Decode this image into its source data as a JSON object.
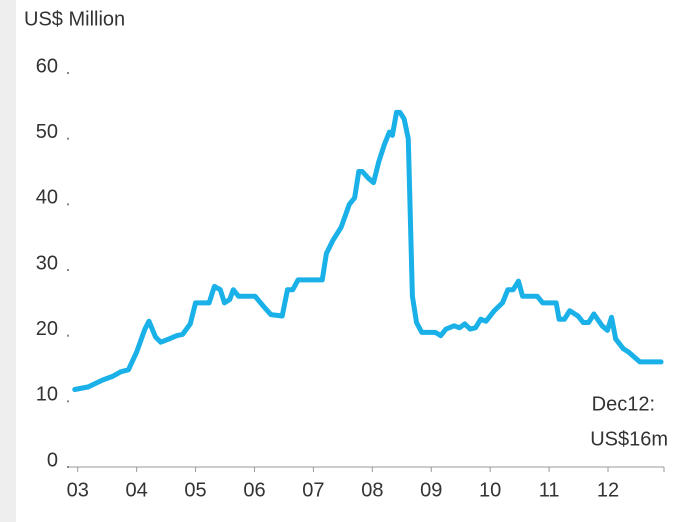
{
  "chart_data": {
    "type": "line",
    "y_label": "US$ Million",
    "annotation": [
      "Dec12:",
      "US$16m"
    ],
    "x": [
      2.95,
      3.18,
      3.41,
      3.59,
      3.73,
      3.86,
      4.0,
      4.14,
      4.21,
      4.32,
      4.41,
      4.55,
      4.68,
      4.78,
      4.91,
      5.0,
      5.23,
      5.32,
      5.42,
      5.49,
      5.58,
      5.64,
      5.73,
      6.01,
      6.15,
      6.28,
      6.47,
      6.56,
      6.65,
      6.74,
      7.15,
      7.22,
      7.33,
      7.47,
      7.61,
      7.7,
      7.77,
      7.83,
      7.93,
      8.02,
      8.11,
      8.2,
      8.29,
      8.34,
      8.41,
      8.47,
      8.54,
      8.61,
      8.68,
      8.75,
      8.84,
      9.07,
      9.16,
      9.25,
      9.39,
      9.48,
      9.57,
      9.66,
      9.75,
      9.84,
      9.93,
      10.07,
      10.21,
      10.3,
      10.39,
      10.48,
      10.55,
      10.71,
      10.8,
      10.89,
      11.12,
      11.17,
      11.26,
      11.35,
      11.49,
      11.58,
      11.67,
      11.76,
      11.9,
      11.99,
      12.06,
      12.13,
      12.26,
      12.35,
      12.54,
      12.9
    ],
    "series": [
      {
        "color": "#1ab0e8",
        "values": [
          11.8,
          12.2,
          13.2,
          13.8,
          14.5,
          14.8,
          17.5,
          21,
          22.2,
          19.8,
          19,
          19.5,
          20,
          20.2,
          21.8,
          25,
          25,
          27.5,
          27,
          25,
          25.5,
          27,
          26,
          26,
          24.5,
          23.2,
          23,
          27,
          27,
          28.5,
          28.5,
          32.5,
          34.5,
          36.5,
          40,
          41,
          45,
          45,
          44,
          43.3,
          46.5,
          49,
          51,
          50.5,
          54,
          54,
          53,
          50,
          26,
          22,
          20.5,
          20.5,
          20,
          21,
          21.5,
          21.2,
          21.8,
          21,
          21.2,
          22.5,
          22.2,
          23.8,
          25,
          27,
          27,
          28.3,
          26,
          26,
          26,
          25,
          25,
          22.5,
          22.5,
          23.8,
          23,
          22,
          22,
          23.3,
          21.5,
          20.8,
          22.8,
          19.5,
          18,
          17.5,
          16,
          16
        ]
      }
    ],
    "xlim": [
      2.92,
      12.95
    ],
    "xticks": [
      {
        "value": 3,
        "label": "03"
      },
      {
        "value": 4,
        "label": "04"
      },
      {
        "value": 5,
        "label": "05"
      },
      {
        "value": 6,
        "label": "06"
      },
      {
        "value": 7,
        "label": "07"
      },
      {
        "value": 8,
        "label": "08"
      },
      {
        "value": 9,
        "label": "09"
      },
      10,
      11,
      12
    ],
    "ylim": [
      0,
      60
    ],
    "yticks": [
      0,
      10,
      20,
      30,
      40,
      50,
      60
    ]
  }
}
